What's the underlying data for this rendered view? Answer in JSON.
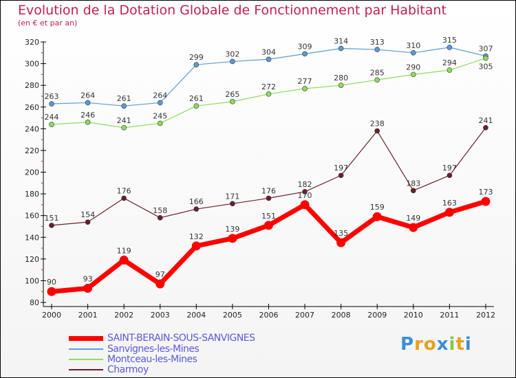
{
  "chart_data": {
    "type": "line",
    "title": "Evolution de la Dotation Globale de Fonctionnement par Habitant",
    "subtitle": "(en € et par an)",
    "xlabel": "",
    "ylabel": "",
    "x": [
      "2000",
      "2001",
      "2002",
      "2003",
      "2004",
      "2005",
      "2006",
      "2007",
      "2008",
      "2009",
      "2010",
      "2011",
      "2012"
    ],
    "ylim": [
      80,
      320
    ],
    "yticks": [
      80,
      100,
      120,
      140,
      160,
      180,
      200,
      220,
      240,
      260,
      280,
      300,
      320
    ],
    "grid": false,
    "legend_position": "bottom-left",
    "series": [
      {
        "name": "SAINT-BERAIN-SOUS-SANVIGNES",
        "color": "#ff0000",
        "width": 7,
        "values": [
          90,
          93,
          119,
          97,
          132,
          139,
          151,
          170,
          135,
          159,
          149,
          163,
          173
        ]
      },
      {
        "name": "Sanvignes-les-Mines",
        "color": "#5b9bd5",
        "width": 1.2,
        "values": [
          263,
          264,
          261,
          264,
          299,
          302,
          304,
          309,
          314,
          313,
          310,
          315,
          307
        ]
      },
      {
        "name": "Montceau-les-Mines",
        "color": "#8fdc5a",
        "width": 1.2,
        "values": [
          244,
          246,
          241,
          245,
          261,
          265,
          272,
          277,
          280,
          285,
          290,
          294,
          305
        ]
      },
      {
        "name": "Charmoy",
        "color": "#6b1f2a",
        "width": 1.2,
        "values": [
          151,
          154,
          176,
          158,
          166,
          171,
          176,
          182,
          197,
          238,
          183,
          197,
          241
        ]
      }
    ]
  },
  "logo": {
    "text": "Proxiti",
    "letters": [
      "P",
      "r",
      "o",
      "x",
      "i",
      "t",
      "i"
    ],
    "colors": [
      "#3a8fd8",
      "#e8a020",
      "#e8a020",
      "#3a8fd8",
      "#8cc63f",
      "#e8a020",
      "#3a8fd8"
    ]
  }
}
